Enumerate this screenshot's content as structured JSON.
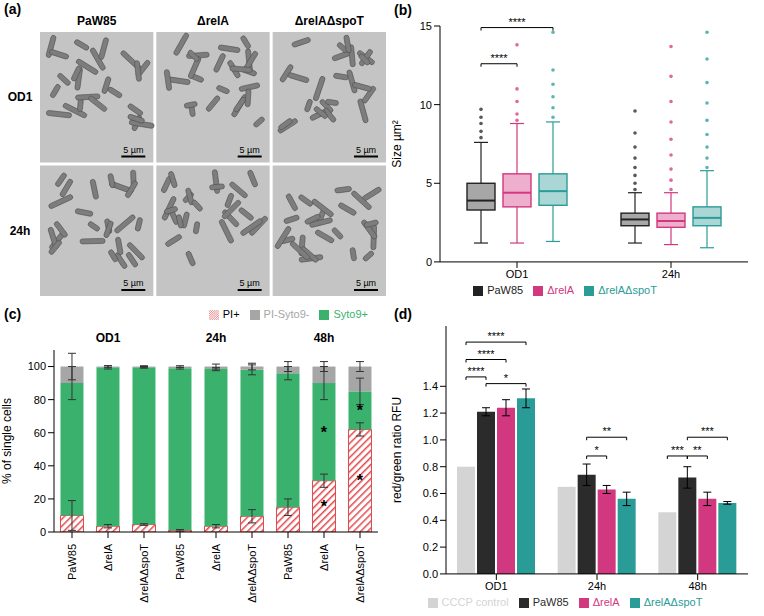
{
  "chart_data": [
    {
      "type": "micrographs",
      "title": "(a)",
      "columns": [
        "PaW85",
        "ΔrelA",
        "ΔrelAΔspoT"
      ],
      "rows": [
        "OD1",
        "24h"
      ],
      "scale_bar": "5 µm"
    },
    {
      "type": "box",
      "title": "(b)",
      "y_label": "Size µm²",
      "categories": [
        "OD1",
        "24h"
      ],
      "ylim": [
        0,
        15
      ],
      "yticks": [
        0,
        5,
        10,
        15
      ],
      "legend": "bottom",
      "series": [
        {
          "name": "PaW85",
          "color": "#222222",
          "boxes": [
            {
              "whisker_low": 1.2,
              "q1": 3.3,
              "median": 3.9,
              "q3": 5.0,
              "whisker_high": 7.6,
              "outliers": [
                7.9,
                8.3,
                8.8,
                9.2,
                9.7
              ]
            },
            {
              "whisker_low": 1.2,
              "q1": 2.3,
              "median": 2.7,
              "q3": 3.1,
              "whisker_high": 4.4,
              "outliers": [
                4.6,
                5.0,
                5.5,
                6.0,
                6.6,
                7.3,
                8.2,
                9.6
              ]
            }
          ]
        },
        {
          "name": "ΔrelA",
          "color": "#d1387f",
          "boxes": [
            {
              "whisker_low": 1.2,
              "q1": 3.5,
              "median": 4.4,
              "q3": 5.6,
              "whisker_high": 8.8,
              "outliers": [
                9.0,
                9.4,
                10.2,
                11.0,
                13.8
              ]
            },
            {
              "whisker_low": 1.1,
              "q1": 2.2,
              "median": 2.6,
              "q3": 3.1,
              "whisker_high": 4.4,
              "outliers": [
                4.6,
                5.2,
                5.9,
                6.8,
                7.8,
                8.9,
                10.2,
                11.8,
                13.7
              ]
            }
          ]
        },
        {
          "name": "ΔrelAΔspoT",
          "color": "#2a9c97",
          "boxes": [
            {
              "whisker_low": 1.3,
              "q1": 3.6,
              "median": 4.5,
              "q3": 5.6,
              "whisker_high": 8.9,
              "outliers": [
                9.2,
                9.8,
                10.5,
                11.3,
                12.2,
                14.6
              ]
            },
            {
              "whisker_low": 0.9,
              "q1": 2.3,
              "median": 2.8,
              "q3": 3.5,
              "whisker_high": 5.8,
              "outliers": [
                6.0,
                6.6,
                7.3,
                8.1,
                9.0,
                10.1,
                11.4,
                12.9,
                14.6
              ]
            }
          ]
        }
      ],
      "annotations": [
        {
          "category": "OD1",
          "from": "PaW85",
          "to": "ΔrelA",
          "y": 12.6,
          "text": "****"
        },
        {
          "category": "OD1",
          "from": "PaW85",
          "to": "ΔrelAΔspoT",
          "y": 14.9,
          "text": "****"
        }
      ]
    },
    {
      "type": "bar",
      "stacked": true,
      "title": "(c)",
      "y_label": "% of single cells",
      "groups": [
        "OD1",
        "24h",
        "48h"
      ],
      "categories": [
        "PaW85",
        "ΔrelA",
        "ΔrelAΔspoT",
        "PaW85",
        "ΔrelA",
        "ΔrelAΔspoT",
        "PaW85",
        "ΔrelA",
        "ΔrelAΔspoT"
      ],
      "ylim": [
        0,
        110
      ],
      "yticks": [
        0,
        20,
        40,
        60,
        80,
        100
      ],
      "legend": "top-right",
      "series": [
        {
          "name": "PI+",
          "color": "#e0474c",
          "values": [
            10,
            3.5,
            4.5,
            1,
            3.5,
            9.5,
            15,
            31,
            62
          ],
          "errors": [
            9,
            1,
            0.5,
            0.5,
            1,
            4,
            5,
            4,
            4
          ]
        },
        {
          "name": "Syto9+",
          "color": "#3ab26e",
          "values": [
            80,
            96,
            95,
            98,
            95,
            88.5,
            81,
            59,
            23
          ],
          "errors": [
            10,
            1,
            0.5,
            0.5,
            1,
            3,
            4,
            10,
            8
          ]
        },
        {
          "name": "PI-Syto9-",
          "color": "#a6a6a6",
          "values": [
            10,
            0.5,
            0.5,
            1,
            1.5,
            2,
            4,
            10,
            15
          ],
          "errors": [
            8,
            0.5,
            0.5,
            0.5,
            1.5,
            2,
            3,
            3,
            3
          ]
        }
      ],
      "annotations": [
        {
          "group": "48h",
          "category": "ΔrelA",
          "series": "PI+",
          "text": "*"
        },
        {
          "group": "48h",
          "category": "ΔrelA",
          "series": "Syto9+",
          "text": "*"
        },
        {
          "group": "48h",
          "category": "ΔrelAΔspoT",
          "series": "PI+",
          "text": "*"
        },
        {
          "group": "48h",
          "category": "ΔrelAΔspoT",
          "series": "Syto9+",
          "text": "*"
        }
      ]
    },
    {
      "type": "bar",
      "title": "(d)",
      "y_label": "red/green ratio RFU",
      "categories": [
        "OD1",
        "24h",
        "48h"
      ],
      "ylim": [
        0,
        1.85
      ],
      "yticks": [
        {
          "value": 0,
          "label": "0.0"
        },
        0.2,
        0.4,
        0.6,
        0.8,
        {
          "value": 1,
          "label": "1.0"
        },
        1.2,
        1.4
      ],
      "legend": "bottom",
      "series": [
        {
          "name": "CCCP control",
          "color": "#d4d4d4",
          "values": [
            0.8,
            0.65,
            0.46
          ]
        },
        {
          "name": "PaW85",
          "color": "#2b2b2b",
          "values": [
            1.21,
            0.74,
            0.72
          ],
          "errors": [
            0.03,
            0.08,
            0.08
          ]
        },
        {
          "name": "ΔrelA",
          "color": "#d1387f",
          "values": [
            1.24,
            0.63,
            0.56
          ],
          "errors": [
            0.06,
            0.03,
            0.05
          ]
        },
        {
          "name": "ΔrelAΔspoT",
          "color": "#2a9c97",
          "values": [
            1.31,
            0.56,
            0.53
          ],
          "errors": [
            0.07,
            0.05,
            0.01
          ]
        }
      ],
      "annotations": [
        {
          "category": "OD1",
          "from": "PaW85",
          "to": "ΔrelAΔspoT",
          "y": 1.42,
          "text": "*"
        },
        {
          "category": "OD1",
          "from": "CCCP control",
          "to": "PaW85",
          "y": 1.47,
          "text": "****"
        },
        {
          "category": "OD1",
          "from": "CCCP control",
          "to": "ΔrelA",
          "y": 1.6,
          "text": "****"
        },
        {
          "category": "OD1",
          "from": "CCCP control",
          "to": "ΔrelAΔspoT",
          "y": 1.73,
          "text": "****"
        },
        {
          "category": "24h",
          "from": "PaW85",
          "to": "ΔrelA",
          "y": 0.88,
          "text": "*"
        },
        {
          "category": "24h",
          "from": "PaW85",
          "to": "ΔrelAΔspoT",
          "y": 1.02,
          "text": "**"
        },
        {
          "category": "48h",
          "from": "CCCP control",
          "to": "PaW85",
          "y": 0.88,
          "text": "***"
        },
        {
          "category": "48h",
          "from": "PaW85",
          "to": "ΔrelA",
          "y": 0.88,
          "text": "**"
        },
        {
          "category": "48h",
          "from": "PaW85",
          "to": "ΔrelAΔspoT",
          "y": 1.02,
          "text": "***"
        }
      ]
    }
  ]
}
